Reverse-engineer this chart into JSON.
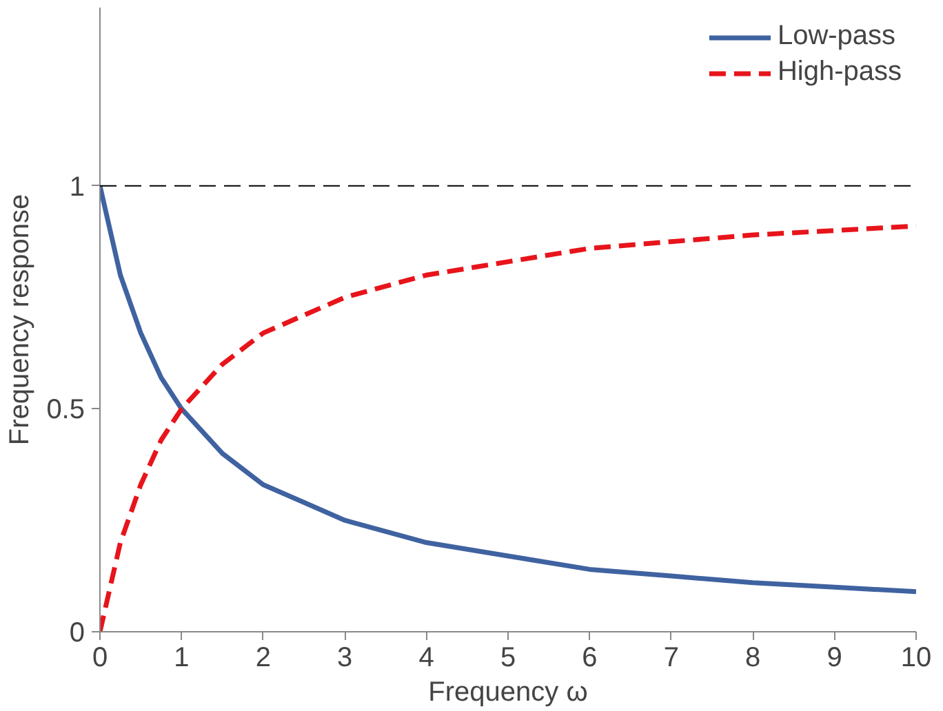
{
  "chart_data": {
    "type": "line",
    "xlabel": "Frequency ω",
    "ylabel": "Frequency response",
    "x": [
      0,
      0.25,
      0.5,
      0.75,
      1,
      1.5,
      2,
      2.5,
      3,
      4,
      5,
      6,
      7,
      8,
      9,
      10
    ],
    "series": [
      {
        "name": "Low-pass",
        "color": "#3f62a0",
        "line_style": "solid",
        "values": [
          1,
          0.8,
          0.67,
          0.57,
          0.5,
          0.4,
          0.33,
          0.29,
          0.25,
          0.2,
          0.17,
          0.14,
          0.125,
          0.11,
          0.1,
          0.09
        ]
      },
      {
        "name": "High-pass",
        "color": "#e8141b",
        "line_style": "dashed",
        "values": [
          0,
          0.2,
          0.33,
          0.43,
          0.5,
          0.6,
          0.67,
          0.71,
          0.75,
          0.8,
          0.83,
          0.86,
          0.875,
          0.89,
          0.9,
          0.91
        ]
      }
    ],
    "xlim": [
      0,
      10
    ],
    "xticks": [
      0,
      1,
      2,
      3,
      4,
      5,
      6,
      7,
      8,
      9,
      10
    ],
    "ylim": [
      0,
      1.4
    ],
    "yticks": [
      0,
      0.5,
      1
    ],
    "ref_lines": [
      {
        "axis": "y",
        "value": 1,
        "color": "#000000",
        "line_style": "dashed"
      }
    ],
    "grid": false,
    "legend": "top right",
    "marker": "none"
  }
}
